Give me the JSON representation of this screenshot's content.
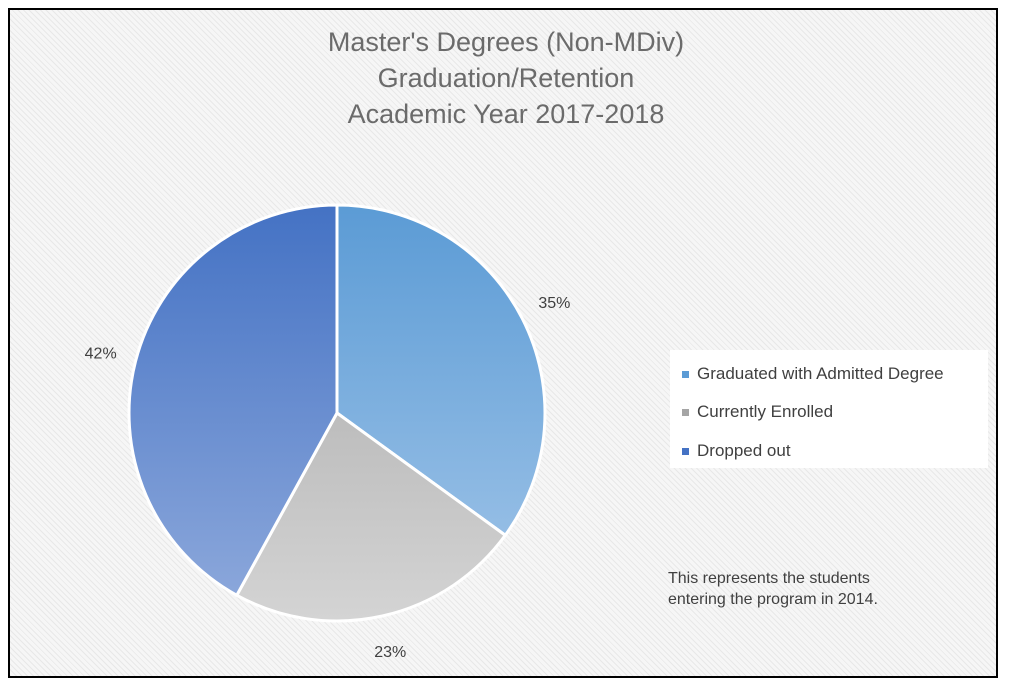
{
  "chart_data": {
    "type": "pie",
    "title_lines": [
      "Master's Degrees (Non-MDiv)",
      "Graduation/Retention",
      "Academic Year 2017-2018"
    ],
    "categories": [
      "Graduated with Admitted Degree",
      "Currently Enrolled",
      "Dropped out"
    ],
    "values": [
      35,
      23,
      42
    ],
    "data_labels": [
      "35%",
      "23%",
      "42%"
    ],
    "colors": [
      "#5b9bd5",
      "#a5a5a5",
      "#4472c4"
    ],
    "gradient_light": [
      "#a3c6e9",
      "#d4d4d4",
      "#8faadc"
    ],
    "legend_position": "right"
  },
  "note": [
    "This represents the students",
    "entering the program in 2014."
  ]
}
